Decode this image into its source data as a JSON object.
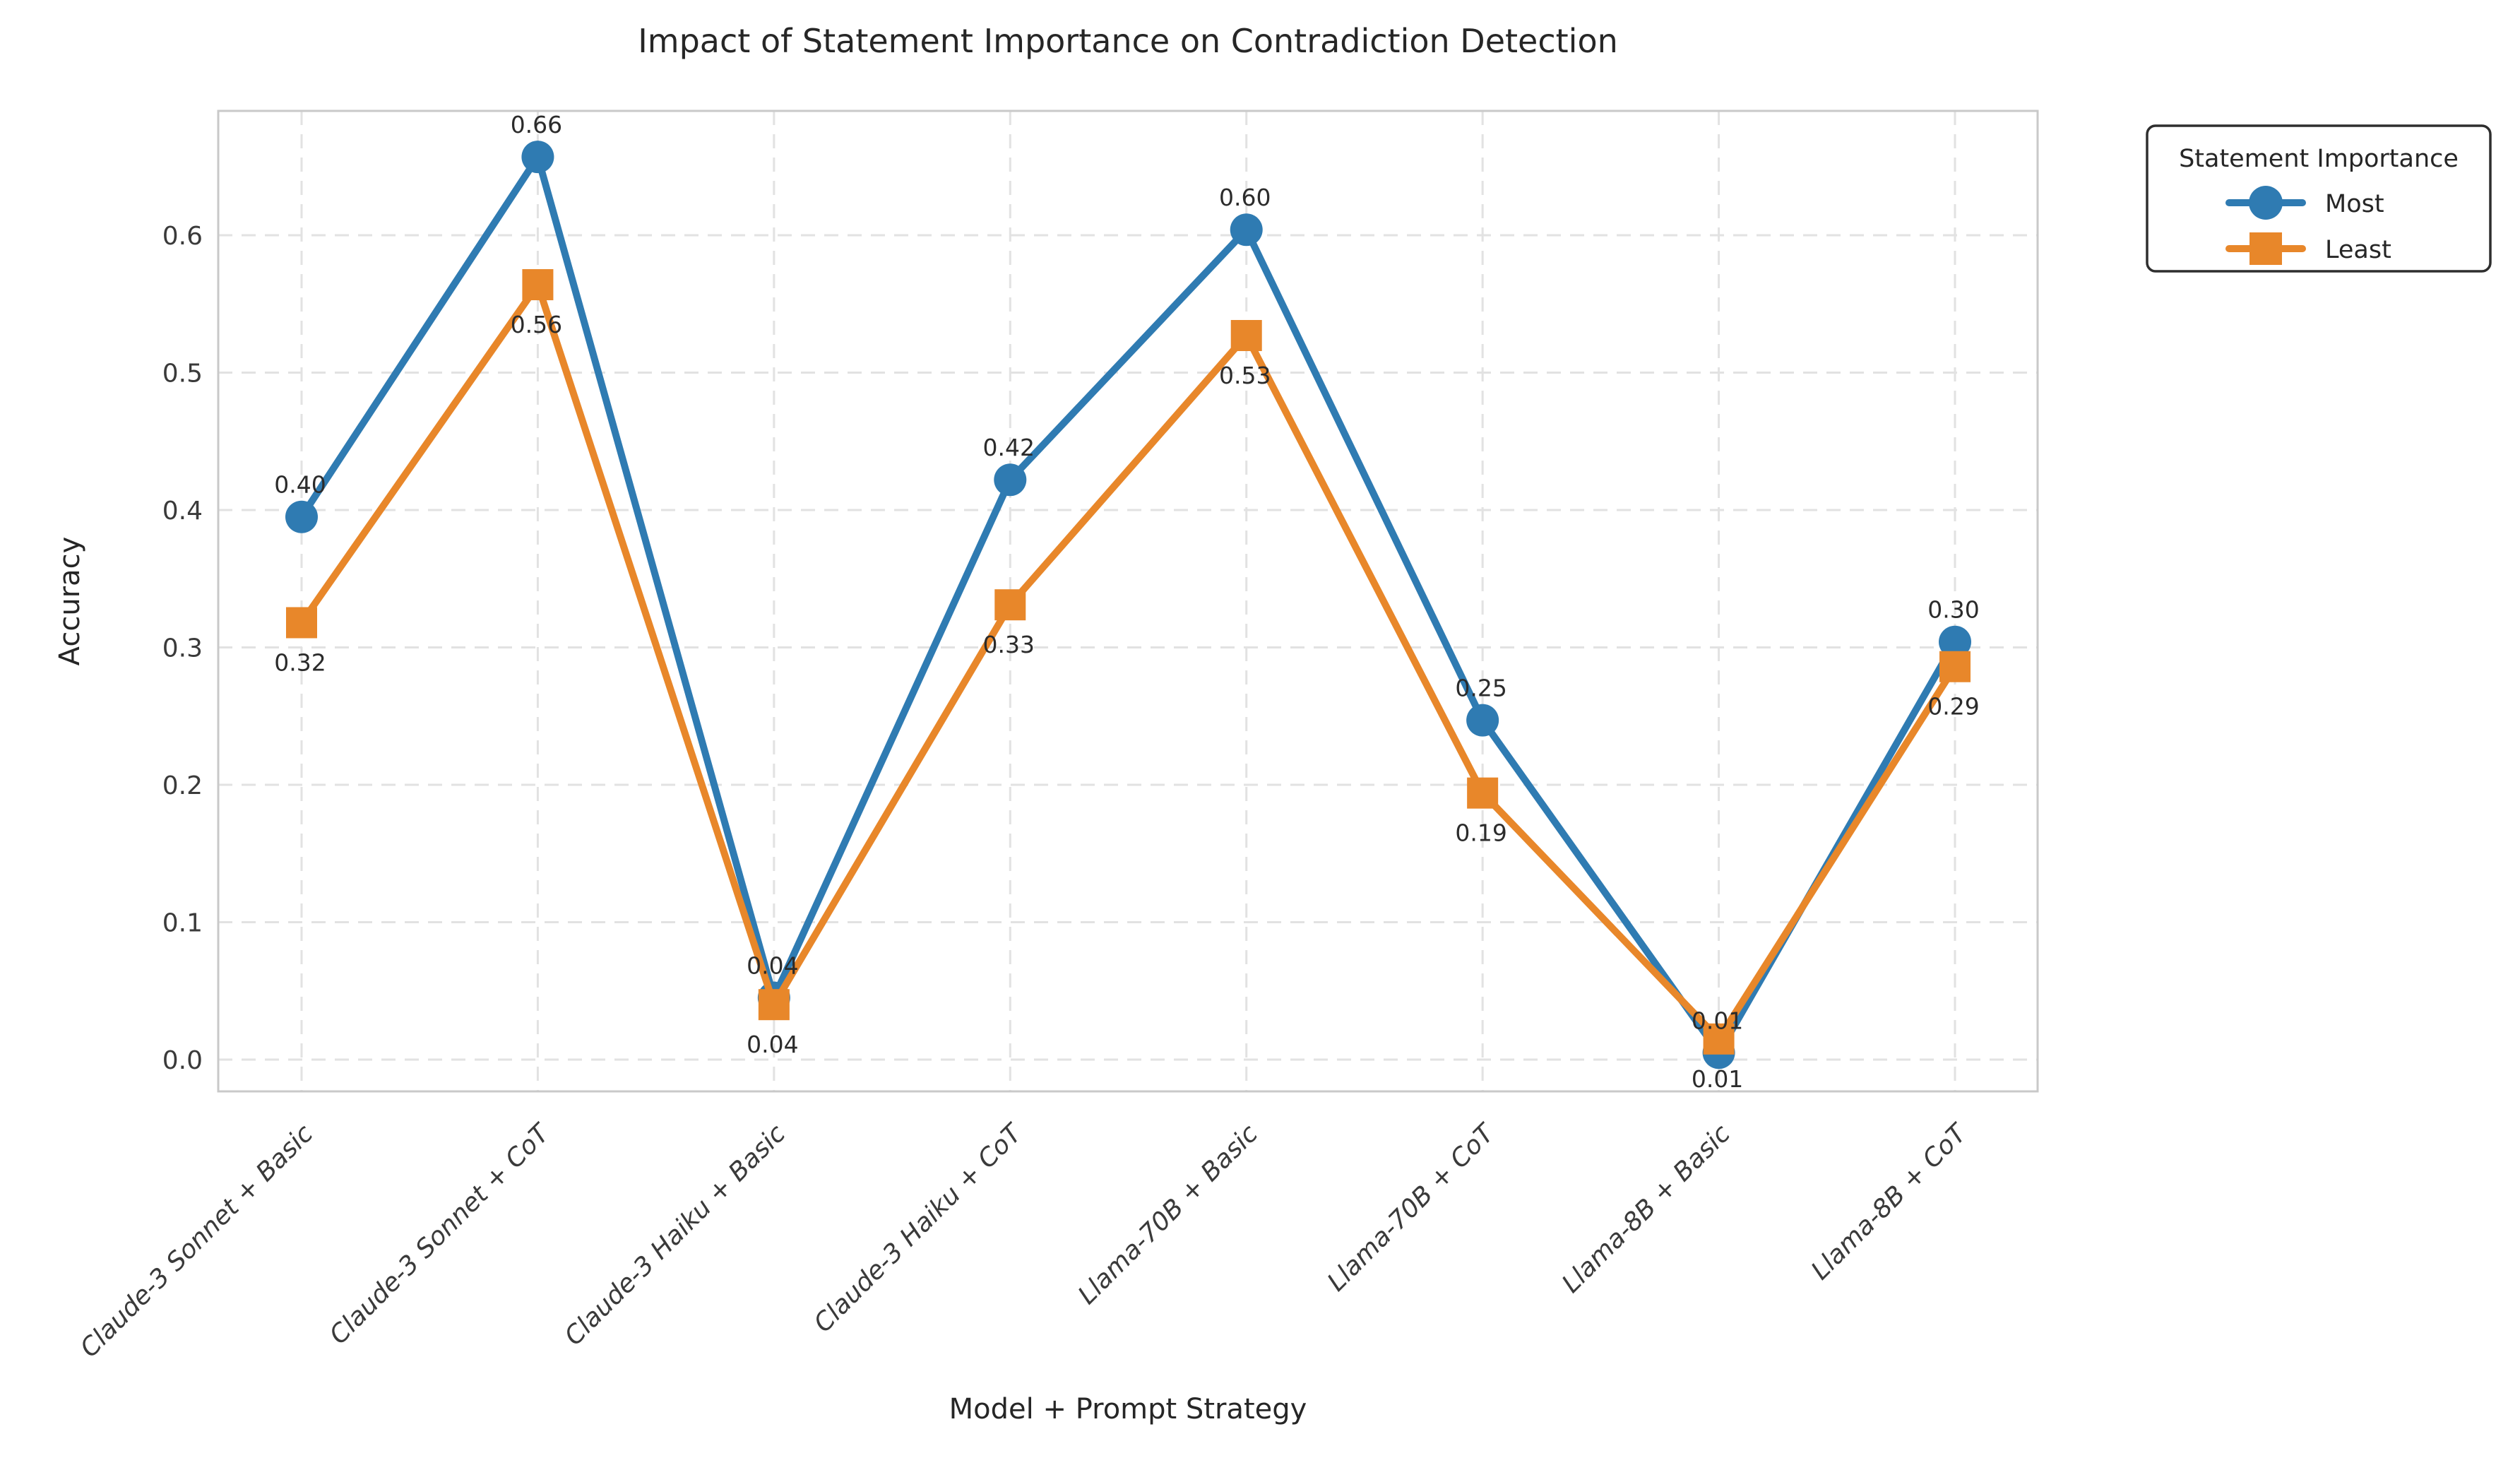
{
  "page": {
    "background": "#ffffff"
  },
  "chart": {
    "title": "Impact of Statement Importance on Contradiction Detection",
    "xlabel": "Model + Prompt Strategy",
    "ylabel": "Accuracy",
    "legend": {
      "title": "Statement Importance",
      "position": "outside-right-top",
      "entries": [
        {
          "label": "Most",
          "marker": "circle",
          "color": "#2f7bb2"
        },
        {
          "label": "Least",
          "marker": "square",
          "color": "#e8872a"
        }
      ]
    }
  },
  "chart_data": {
    "type": "line",
    "title": "Impact of Statement Importance on Contradiction Detection",
    "xlabel": "Model + Prompt Strategy",
    "ylabel": "Accuracy",
    "grid": "dashed-both-axes",
    "legend_position": "outside-right-top",
    "categories": [
      "Claude-3 Sonnet + Basic",
      "Claude-3 Sonnet + CoT",
      "Claude-3 Haiku + Basic",
      "Claude-3 Haiku + CoT",
      "Llama-70B + Basic",
      "Llama-70B + CoT",
      "Llama-8B + Basic",
      "Llama-8B + CoT"
    ],
    "series": [
      {
        "name": "Most",
        "marker": "circle",
        "color": "#2f7bb2",
        "values": [
          0.395,
          0.657,
          0.045,
          0.422,
          0.604,
          0.247,
          0.005,
          0.304
        ],
        "point_labels": [
          "0.40",
          "0.66",
          "0.04",
          "0.42",
          "0.60",
          "0.25",
          "0.01",
          "0.30"
        ],
        "label_side": "above"
      },
      {
        "name": "Least",
        "marker": "square",
        "color": "#e8872a",
        "values": [
          0.318,
          0.564,
          0.04,
          0.331,
          0.527,
          0.194,
          0.015,
          0.286
        ],
        "point_labels": [
          "0.32",
          "0.56",
          "0.04",
          "0.33",
          "0.53",
          "0.19",
          "0.01",
          "0.29"
        ],
        "label_side": "below"
      }
    ],
    "yticks": [
      0.0,
      0.1,
      0.2,
      0.3,
      0.4,
      0.5,
      0.6
    ],
    "ytick_labels": [
      "0.0",
      "0.1",
      "0.2",
      "0.3",
      "0.4",
      "0.5",
      "0.6"
    ],
    "ylim": [
      -0.023,
      0.691
    ],
    "xtick_rotation_deg": 45,
    "xtick_style": "italic"
  }
}
